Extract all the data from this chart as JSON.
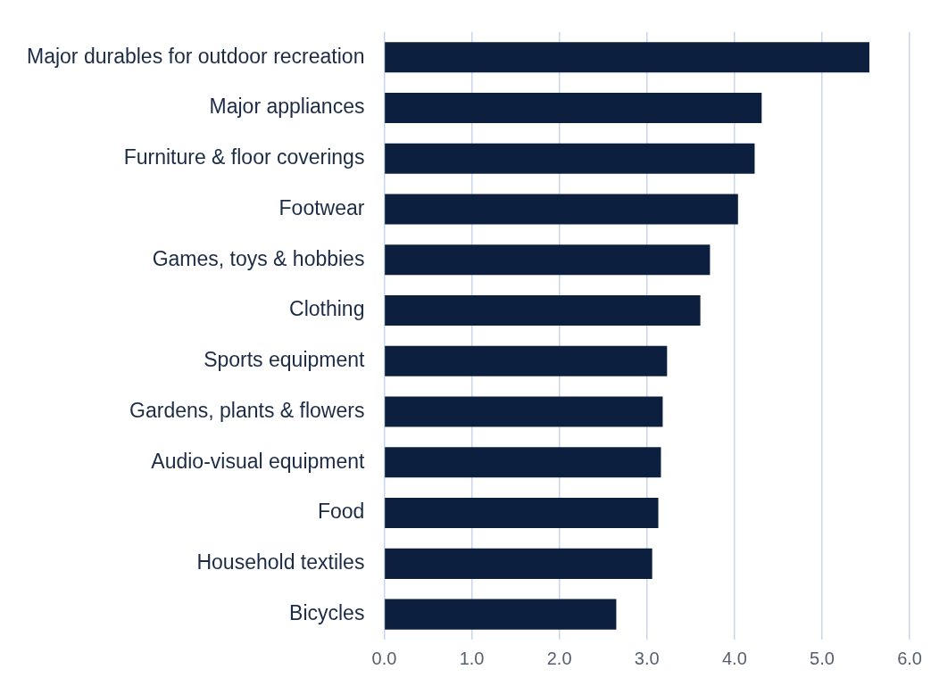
{
  "chart_data": {
    "type": "bar",
    "orientation": "horizontal",
    "categories": [
      "Major durables for outdoor recreation",
      "Major appliances",
      "Furniture & floor coverings",
      "Footwear",
      "Games, toys & hobbies",
      "Clothing",
      "Sports equipment",
      "Gardens, plants & flowers",
      "Audio-visual equipment",
      "Food",
      "Household textiles",
      "Bicycles"
    ],
    "values": [
      5.54,
      4.31,
      4.23,
      4.04,
      3.72,
      3.61,
      3.23,
      3.18,
      3.16,
      3.13,
      3.06,
      2.65
    ],
    "color": "#0c1f3f",
    "xlim": [
      0,
      6
    ],
    "xticks": [
      {
        "value": 0,
        "label": "0.0"
      },
      {
        "value": 1,
        "label": "1.0"
      },
      {
        "value": 2,
        "label": "2.0"
      },
      {
        "value": 3,
        "label": "3.0"
      },
      {
        "value": 4,
        "label": "4.0"
      },
      {
        "value": 5,
        "label": "5.0"
      },
      {
        "value": 6,
        "label": "6.0"
      }
    ],
    "grid": "x",
    "legend": false
  }
}
